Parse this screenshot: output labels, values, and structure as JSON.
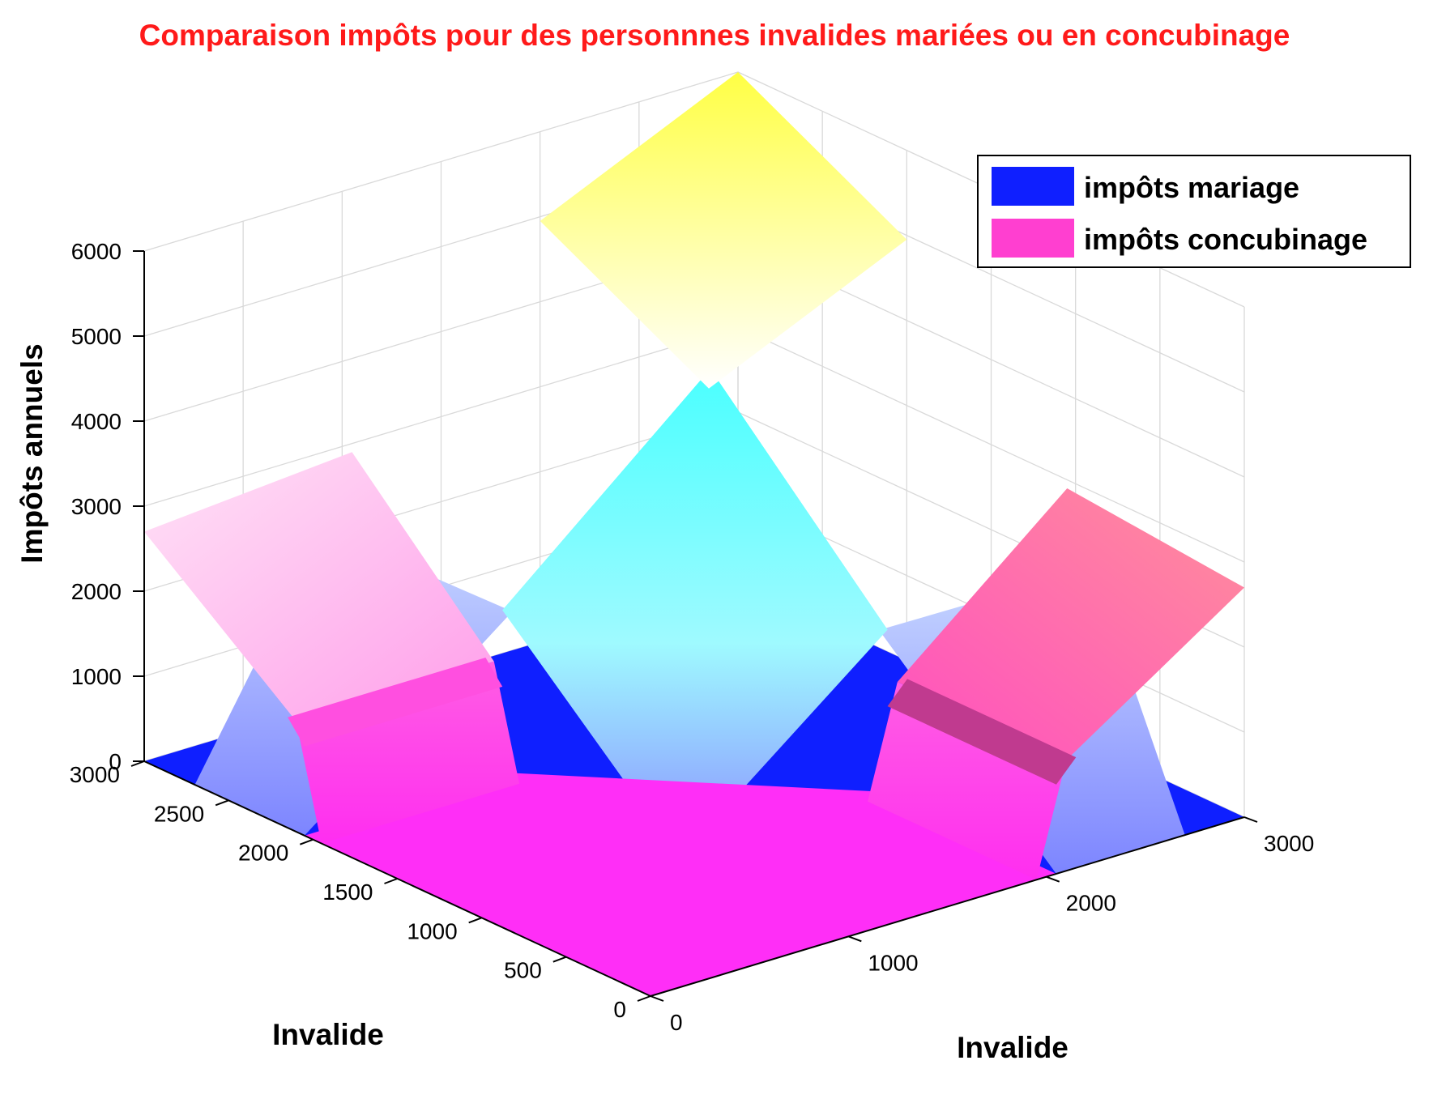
{
  "chart_data": {
    "type": "surface3d",
    "title": "Comparaison impôts pour des personnnes invalides mariées ou en concubinage",
    "xlabel": "Invalide",
    "ylabel": "Invalide",
    "zlabel": "Impôts annuels",
    "xlim": [
      0,
      3000
    ],
    "ylim": [
      0,
      3000
    ],
    "zlim": [
      0,
      6000
    ],
    "x_ticks": [
      "0",
      "1000",
      "2000",
      "3000"
    ],
    "y_ticks": [
      "0",
      "500",
      "1000",
      "1500",
      "2000",
      "2500",
      "3000"
    ],
    "z_ticks": [
      "0",
      "1000",
      "2000",
      "3000",
      "4000",
      "5000",
      "6000"
    ],
    "grid": true,
    "legend": {
      "position": "top-right"
    },
    "series": [
      {
        "name": "impôts mariage",
        "color": "#0f1fff",
        "x": [
          0,
          1000,
          2000,
          3000
        ],
        "y": [
          0,
          1000,
          2000,
          3000
        ],
        "z": [
          [
            0,
            0,
            900,
            2100
          ],
          [
            0,
            0,
            1950,
            3900
          ],
          [
            900,
            1950,
            3900,
            4950
          ],
          [
            2100,
            3900,
            4950,
            6000
          ]
        ]
      },
      {
        "name": "impôts concubinage",
        "color": "#ff3fd0",
        "x": [
          0,
          1000,
          2000,
          3000
        ],
        "y": [
          0,
          1000,
          2000,
          3000
        ],
        "z": [
          [
            0,
            0,
            1000,
            2700
          ],
          [
            0,
            0,
            1000,
            2700
          ],
          [
            1000,
            1000,
            2000,
            3700
          ],
          [
            2700,
            2700,
            3700,
            5400
          ]
        ]
      }
    ]
  }
}
